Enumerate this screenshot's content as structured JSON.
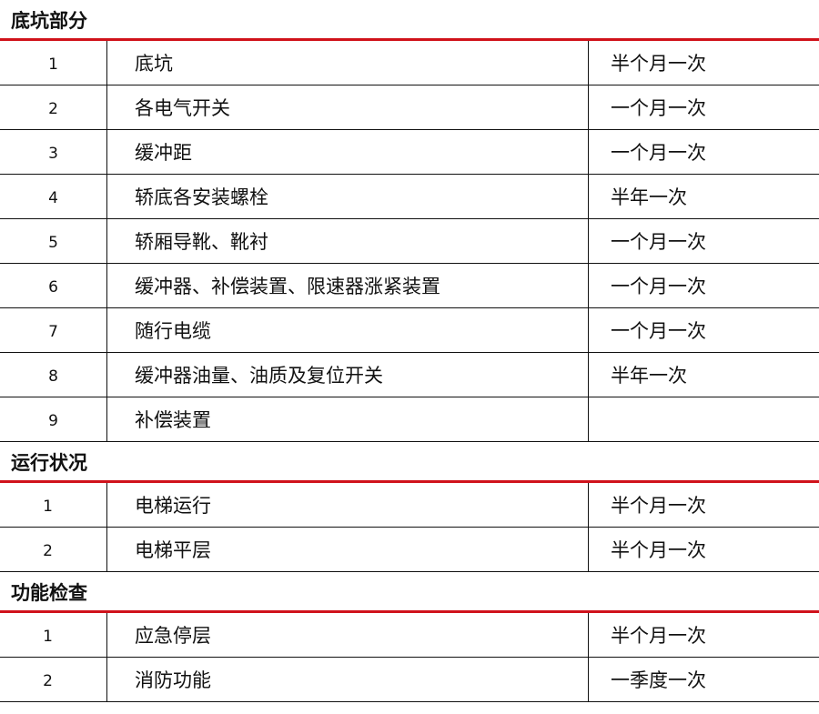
{
  "sections": [
    {
      "title": "底坑部分",
      "rows": [
        {
          "no": "1",
          "item": "底坑",
          "freq": "半个月一次"
        },
        {
          "no": "2",
          "item": "各电气开关",
          "freq": "一个月一次"
        },
        {
          "no": "3",
          "item": "缓冲距",
          "freq": "一个月一次"
        },
        {
          "no": "4",
          "item": "轿底各安装螺栓",
          "freq": "半年一次"
        },
        {
          "no": "5",
          "item": "轿厢导靴、靴衬",
          "freq": "一个月一次"
        },
        {
          "no": "6",
          "item": "缓冲器、补偿装置、限速器涨紧装置",
          "freq": "一个月一次"
        },
        {
          "no": "7",
          "item": "随行电缆",
          "freq": "一个月一次"
        },
        {
          "no": "8",
          "item": "缓冲器油量、油质及复位开关",
          "freq": "半年一次"
        },
        {
          "no": "9",
          "item": "补偿装置",
          "freq": ""
        }
      ]
    },
    {
      "title": "运行状况",
      "rows": [
        {
          "no": "1",
          "item": "电梯运行",
          "freq": "半个月一次"
        },
        {
          "no": "2",
          "item": "电梯平层",
          "freq": "半个月一次"
        }
      ]
    },
    {
      "title": "功能检查",
      "rows": [
        {
          "no": "1",
          "item": "应急停层",
          "freq": "半个月一次"
        },
        {
          "no": "2",
          "item": "消防功能",
          "freq": "一季度一次"
        }
      ]
    }
  ]
}
